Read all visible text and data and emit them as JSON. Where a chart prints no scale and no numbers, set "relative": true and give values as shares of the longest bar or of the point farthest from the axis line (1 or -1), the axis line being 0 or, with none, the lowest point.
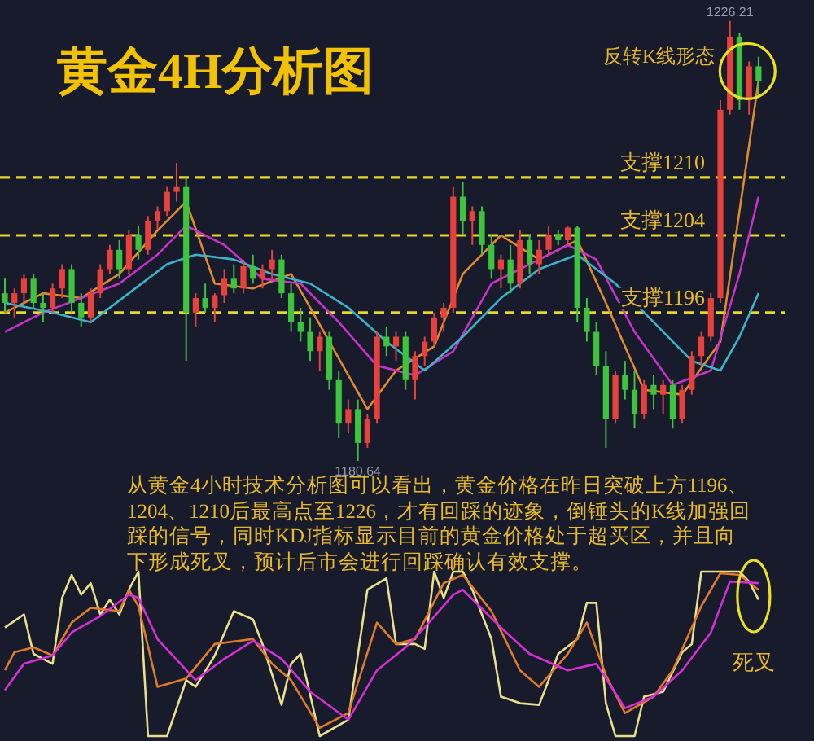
{
  "chart_data": [
    {
      "type": "candlestick",
      "title": "黄金4H分析图",
      "categories": [
        null,
        null,
        null,
        null,
        null,
        null,
        null,
        null,
        null,
        null,
        null,
        null,
        null,
        null,
        null,
        null,
        null,
        null,
        null,
        null,
        null,
        null,
        null,
        null,
        null,
        null,
        null,
        null,
        null,
        null,
        null,
        null,
        null,
        null,
        null,
        null,
        null,
        null,
        null,
        null,
        null,
        null,
        null,
        null,
        null,
        null,
        null,
        null,
        null,
        null,
        null,
        null,
        null,
        null,
        null,
        null,
        null,
        null,
        null,
        null,
        null,
        null,
        null,
        null,
        null,
        null,
        null,
        null,
        null,
        null,
        null,
        null,
        null,
        null,
        null,
        null,
        null,
        null,
        null,
        null
      ],
      "ohlc": [
        [
          1198,
          1199.5,
          1196,
          1197
        ],
        [
          1197,
          1198.5,
          1195.5,
          1198
        ],
        [
          1198,
          1200,
          1197,
          1199.5
        ],
        [
          1199.5,
          1200,
          1196.5,
          1197
        ],
        [
          1197,
          1198,
          1195,
          1196.5
        ],
        [
          1196.5,
          1199,
          1196,
          1198.5
        ],
        [
          1198.5,
          1201,
          1197.5,
          1200.5
        ],
        [
          1200.5,
          1201,
          1196,
          1197
        ],
        [
          1197,
          1198,
          1194.5,
          1195.5
        ],
        [
          1195.5,
          1198.5,
          1195,
          1198
        ],
        [
          1198,
          1201,
          1197.5,
          1200.5
        ],
        [
          1200.5,
          1203,
          1200,
          1202.5
        ],
        [
          1202.5,
          1203.5,
          1199.5,
          1200.5
        ],
        [
          1200.5,
          1204.5,
          1200,
          1204
        ],
        [
          1204,
          1205,
          1201.5,
          1202.5
        ],
        [
          1202.5,
          1206,
          1202,
          1205.5
        ],
        [
          1205.5,
          1207,
          1204.5,
          1206.5
        ],
        [
          1206.5,
          1209,
          1206,
          1208.5
        ],
        [
          1208.5,
          1211.5,
          1207.5,
          1209
        ],
        [
          1209,
          1210,
          1191,
          1196
        ],
        [
          1196,
          1198,
          1194.5,
          1197.5
        ],
        [
          1197.5,
          1199,
          1196,
          1196.5
        ],
        [
          1196.5,
          1198,
          1195,
          1197.8
        ],
        [
          1197.8,
          1200.5,
          1197,
          1199.5
        ],
        [
          1199.5,
          1201,
          1198,
          1198.5
        ],
        [
          1198.5,
          1201.5,
          1198,
          1200.8
        ],
        [
          1200.8,
          1202,
          1199,
          1199.5
        ],
        [
          1199.5,
          1201,
          1198.5,
          1200.5
        ],
        [
          1200.5,
          1202.5,
          1199.5,
          1201.5
        ],
        [
          1201.5,
          1202,
          1197.5,
          1198
        ],
        [
          1198,
          1199,
          1194,
          1195
        ],
        [
          1195,
          1196.5,
          1193,
          1194
        ],
        [
          1194,
          1195.5,
          1191,
          1192
        ],
        [
          1192,
          1194,
          1190,
          1193.5
        ],
        [
          1193.5,
          1194,
          1188,
          1189
        ],
        [
          1189,
          1190,
          1183,
          1184.5
        ],
        [
          1184.5,
          1187,
          1183.5,
          1186
        ],
        [
          1186,
          1187,
          1180.64,
          1182.5
        ],
        [
          1182.5,
          1185.5,
          1182,
          1185
        ],
        [
          1185,
          1194,
          1184.5,
          1193.5
        ],
        [
          1193.5,
          1194.5,
          1191.5,
          1192.5
        ],
        [
          1192.5,
          1194,
          1191,
          1193.5
        ],
        [
          1193.5,
          1194,
          1188,
          1189
        ],
        [
          1189,
          1192,
          1187,
          1191.5
        ],
        [
          1191.5,
          1193.5,
          1190.5,
          1193
        ],
        [
          1193,
          1196,
          1192.5,
          1195.5
        ],
        [
          1195.5,
          1197,
          1194,
          1196.5
        ],
        [
          1196.5,
          1209,
          1196,
          1208
        ],
        [
          1208,
          1209.5,
          1204,
          1205.5
        ],
        [
          1205.5,
          1207,
          1203,
          1206.5
        ],
        [
          1206.5,
          1207,
          1202,
          1203
        ],
        [
          1203,
          1204,
          1199.5,
          1200.5
        ],
        [
          1200.5,
          1202,
          1198.5,
          1201.5
        ],
        [
          1201.5,
          1203,
          1198,
          1199
        ],
        [
          1199,
          1204.5,
          1198.5,
          1203.5
        ],
        [
          1203.5,
          1204,
          1200,
          1201
        ],
        [
          1201,
          1203.5,
          1200,
          1202.5
        ],
        [
          1202.5,
          1205,
          1202,
          1204
        ],
        [
          1204,
          1204.5,
          1203,
          1203.5
        ],
        [
          1203.5,
          1205,
          1203,
          1204.8
        ],
        [
          1204.8,
          1205,
          1195,
          1196.5
        ],
        [
          1196.5,
          1197.5,
          1193,
          1194
        ],
        [
          1194,
          1195,
          1189.5,
          1190.5
        ],
        [
          1190.5,
          1192,
          1182,
          1185
        ],
        [
          1185,
          1190,
          1184.5,
          1189.5
        ],
        [
          1189.5,
          1191,
          1187,
          1188
        ],
        [
          1188,
          1190,
          1184,
          1185.5
        ],
        [
          1185.5,
          1189,
          1185,
          1188.5
        ],
        [
          1188.5,
          1189.5,
          1186,
          1187.5
        ],
        [
          1187.5,
          1189,
          1185.5,
          1188.5
        ],
        [
          1188.5,
          1189,
          1184,
          1185
        ],
        [
          1185,
          1188.5,
          1184.5,
          1188
        ],
        [
          1188,
          1192,
          1187.5,
          1191.5
        ],
        [
          1191.5,
          1194,
          1190.5,
          1193.5
        ],
        [
          1193.5,
          1198,
          1193,
          1197.5
        ],
        [
          1197.5,
          1218,
          1197,
          1217
        ],
        [
          1217,
          1226.21,
          1216.5,
          1224.5
        ],
        [
          1224.5,
          1225,
          1217,
          1218
        ],
        [
          1218,
          1222,
          1216.5,
          1221.5
        ],
        [
          1221.5,
          1222.5,
          1218.5,
          1220
        ]
      ],
      "colors": [
        "#3cc43c",
        "#e8413c",
        "#e8413c",
        "#3cc43c",
        "#3cc43c",
        "#e8413c",
        "#e8413c",
        "#3cc43c",
        "#3cc43c",
        "#e8413c",
        "#e8413c",
        "#e8413c",
        "#3cc43c",
        "#e8413c",
        "#3cc43c",
        "#e8413c",
        "#e8413c",
        "#e8413c",
        "#e8413c",
        "#3cc43c",
        "#e8413c",
        "#3cc43c",
        "#e8413c",
        "#e8413c",
        "#3cc43c",
        "#e8413c",
        "#3cc43c",
        "#e8413c",
        "#e8413c",
        "#3cc43c",
        "#3cc43c",
        "#3cc43c",
        "#3cc43c",
        "#e8413c",
        "#3cc43c",
        "#3cc43c",
        "#e8413c",
        "#3cc43c",
        "#e8413c",
        "#e8413c",
        "#3cc43c",
        "#e8413c",
        "#3cc43c",
        "#e8413c",
        "#e8413c",
        "#e8413c",
        "#e8413c",
        "#e8413c",
        "#3cc43c",
        "#e8413c",
        "#3cc43c",
        "#3cc43c",
        "#e8413c",
        "#3cc43c",
        "#e8413c",
        "#3cc43c",
        "#e8413c",
        "#e8413c",
        "#3cc43c",
        "#e8413c",
        "#3cc43c",
        "#3cc43c",
        "#3cc43c",
        "#3cc43c",
        "#e8413c",
        "#3cc43c",
        "#3cc43c",
        "#e8413c",
        "#3cc43c",
        "#e8413c",
        "#3cc43c",
        "#e8413c",
        "#e8413c",
        "#e8413c",
        "#e8413c",
        "#e8413c",
        "#e8413c",
        "#3cc43c",
        "#e8413c",
        "#3cc43c"
      ],
      "series": [
        {
          "type": "line",
          "color": "#e08a2e",
          "values": [
            1196,
            null,
            null,
            null,
            1198,
            null,
            null,
            null,
            1197.5,
            null,
            null,
            null,
            1200,
            null,
            null,
            null,
            1204.5,
            null,
            null,
            1207.5,
            null,
            null,
            1199,
            null,
            null,
            null,
            1198.5,
            null,
            null,
            null,
            1200,
            null,
            null,
            null,
            1193,
            null,
            null,
            null,
            1186,
            null,
            null,
            1190,
            null,
            null,
            null,
            1192.5,
            null,
            null,
            1200,
            null,
            null,
            null,
            1204,
            null,
            null,
            null,
            1201.5,
            null,
            null,
            null,
            1203.5,
            null,
            null,
            1197,
            null,
            null,
            null,
            1188,
            null,
            null,
            null,
            1187.5,
            null,
            null,
            null,
            1193,
            null,
            null,
            null,
            1220
          ]
        },
        {
          "type": "line",
          "color": "#c832c8",
          "values": [
            1194,
            null,
            null,
            null,
            1196,
            null,
            null,
            null,
            1197.5,
            null,
            null,
            null,
            1199,
            null,
            null,
            null,
            1202,
            null,
            null,
            1205,
            null,
            null,
            null,
            1203,
            null,
            null,
            null,
            1199.5,
            null,
            null,
            null,
            1199,
            null,
            null,
            null,
            1195,
            null,
            null,
            null,
            1190.5,
            null,
            null,
            null,
            1189.5,
            null,
            null,
            null,
            1192,
            null,
            null,
            null,
            1199,
            null,
            null,
            null,
            1201,
            null,
            null,
            null,
            1203,
            null,
            null,
            1201.5,
            null,
            null,
            null,
            1194,
            null,
            null,
            null,
            1188.5,
            null,
            null,
            null,
            1190,
            null,
            null,
            1200,
            null,
            1208
          ]
        },
        {
          "type": "line",
          "color": "#3bb3c8",
          "values": [
            1197,
            null,
            null,
            null,
            null,
            1196,
            null,
            null,
            null,
            1195,
            null,
            null,
            null,
            1198,
            null,
            null,
            null,
            1201,
            null,
            null,
            1202,
            null,
            null,
            null,
            1201.5,
            null,
            null,
            null,
            1200,
            null,
            null,
            null,
            1199,
            null,
            null,
            null,
            1196.5,
            null,
            null,
            null,
            1193,
            null,
            null,
            null,
            1190,
            null,
            null,
            null,
            1193.5,
            null,
            null,
            null,
            1197.5,
            null,
            null,
            null,
            1200.5,
            null,
            null,
            null,
            1202,
            null,
            null,
            null,
            1199,
            null,
            null,
            null,
            1195,
            null,
            null,
            null,
            1191,
            null,
            null,
            1190,
            null,
            1193.5,
            null,
            1198
          ]
        }
      ],
      "ref_lines": [
        {
          "axis": "y",
          "value": 1210,
          "label": "支撑1210",
          "color": "#e6d72a",
          "line_style": "dashed"
        },
        {
          "axis": "y",
          "value": 1204,
          "label": "支撑1204",
          "color": "#e6d72a",
          "line_style": "dashed"
        },
        {
          "axis": "y",
          "value": 1196,
          "label": "支撑1196",
          "color": "#e6d72a",
          "line_style": "dashed"
        }
      ],
      "annotations": [
        {
          "text": "1226.21",
          "y": 1226.21
        },
        {
          "text": "1180.64",
          "y": 1180.64
        },
        "反转K线形态",
        "从黄金4小时技术分析图可以看出，黄金价格在昨日突破上方1196、1204、1210后最高点至1226，才有回踩的迹象，倒锤头的K线加强回踩的信号，同时KDJ指标显示目前的黄金价格处于超买区，并且向下形成死叉，预计后市会进行回踩确认有效支撑。"
      ]
    },
    {
      "type": "line",
      "relative": true,
      "categories": [
        null,
        null,
        null,
        null,
        null,
        null,
        null,
        null,
        null,
        null,
        null,
        null,
        null,
        null,
        null,
        null,
        null,
        null,
        null,
        null,
        null,
        null,
        null,
        null,
        null,
        null,
        null,
        null,
        null,
        null,
        null,
        null,
        null,
        null,
        null,
        null,
        null,
        null,
        null,
        null,
        null,
        null,
        null,
        null,
        null,
        null,
        null,
        null,
        null,
        null,
        null,
        null,
        null,
        null,
        null,
        null,
        null,
        null,
        null,
        null,
        null,
        null,
        null,
        null,
        null,
        null,
        null,
        null,
        null,
        null,
        null,
        null,
        null,
        null,
        null,
        null,
        null,
        null,
        null,
        null
      ],
      "series": [
        {
          "color": "#e8e08a",
          "values": [
            0.66,
            null,
            0.74,
            0.5,
            null,
            0.44,
            0.84,
            0.98,
            0.86,
            0.93,
            0.74,
            0.83,
            0.74,
            0.89,
            1,
            0,
            null,
            0,
            null,
            0.34,
            0.3,
            null,
            0.49,
            null,
            0.76,
            null,
            0.71,
            0.56,
            null,
            0.19,
            0.44,
            0.5,
            null,
            0,
            null,
            null,
            0.1,
            null,
            0.89,
            null,
            0.96,
            0.56,
            0.56,
            0.56,
            0.53,
            1,
            0.84,
            1,
            1,
            0.89,
            null,
            0.59,
            0.24,
            null,
            0.2,
            null,
            0.19,
            0.34,
            0.5,
            null,
            0.59,
            0.81,
            0.81,
            0.2,
            0,
            null,
            0,
            0.24,
            null,
            0.27,
            null,
            0.51,
            0.56,
            1,
            null,
            null,
            null,
            1,
            0.94,
            0.83
          ]
        },
        {
          "color": "#e07b2a",
          "values": [
            0.4,
            0.51,
            null,
            0.54,
            null,
            0.49,
            null,
            0.69,
            null,
            0.78,
            null,
            null,
            0.76,
            0.89,
            0.79,
            null,
            0.3,
            null,
            null,
            0.35,
            null,
            null,
            0.56,
            null,
            null,
            null,
            0.59,
            null,
            0.44,
            null,
            0.34,
            null,
            null,
            0.05,
            null,
            null,
            0.14,
            null,
            null,
            0.69,
            null,
            0.56,
            null,
            0.59,
            null,
            null,
            0.93,
            null,
            0.98,
            null,
            null,
            0.76,
            null,
            null,
            0.4,
            null,
            0.3,
            null,
            null,
            0.5,
            null,
            0.69,
            null,
            0.37,
            null,
            0.14,
            null,
            null,
            0.24,
            null,
            0.4,
            null,
            null,
            0.79,
            null,
            0.99,
            null,
            0.98,
            null,
            0.89
          ]
        },
        {
          "color": "#d62fd6",
          "values": [
            0.28,
            null,
            0.44,
            null,
            null,
            0.49,
            null,
            0.63,
            null,
            null,
            0.73,
            null,
            null,
            0.86,
            0.84,
            null,
            0.59,
            null,
            null,
            null,
            0.34,
            null,
            null,
            0.47,
            null,
            null,
            0.58,
            null,
            null,
            0.47,
            null,
            null,
            0.27,
            null,
            null,
            null,
            0.1,
            null,
            null,
            0.4,
            null,
            null,
            0.54,
            null,
            0.66,
            null,
            null,
            0.86,
            0.89,
            null,
            null,
            null,
            0.66,
            null,
            null,
            0.5,
            null,
            null,
            null,
            0.4,
            null,
            null,
            0.44,
            null,
            null,
            0.17,
            null,
            null,
            0.24,
            null,
            null,
            0.4,
            null,
            null,
            0.63,
            null,
            0.94,
            null,
            null,
            0.93
          ]
        }
      ],
      "annotations": [
        "死叉"
      ]
    }
  ]
}
